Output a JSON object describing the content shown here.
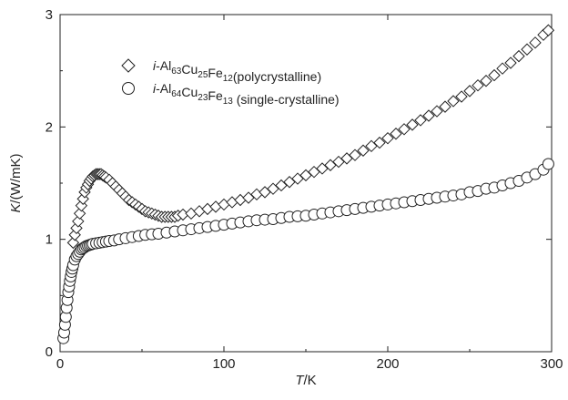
{
  "chart_data": {
    "type": "scatter",
    "xlabel": {
      "italic": "T",
      "rest": "/K"
    },
    "ylabel": {
      "italic": "K",
      "rest": "/(W/mK)"
    },
    "xlim": [
      0,
      300
    ],
    "ylim": [
      0,
      3
    ],
    "xticks": [
      "0",
      "100",
      "200",
      "300"
    ],
    "yticks": [
      "0",
      "1",
      "2",
      "3"
    ],
    "legend_position": "top-left",
    "grid": false,
    "series": [
      {
        "marker": "diamond",
        "legend": {
          "prefix": "i",
          "parts": [
            {
              "t": "-Al"
            },
            {
              "sub": "63"
            },
            {
              "t": "Cu"
            },
            {
              "sub": "25"
            },
            {
              "t": "Fe"
            },
            {
              "sub": "12"
            },
            {
              "t": "(polycrystalline)"
            }
          ]
        },
        "points": [
          [
            8,
            0.97
          ],
          [
            9,
            1.04
          ],
          [
            10,
            1.1
          ],
          [
            11,
            1.16
          ],
          [
            12,
            1.23
          ],
          [
            13,
            1.3
          ],
          [
            14,
            1.36
          ],
          [
            15,
            1.42
          ],
          [
            16,
            1.46
          ],
          [
            17,
            1.49
          ],
          [
            18,
            1.52
          ],
          [
            19,
            1.54
          ],
          [
            20,
            1.56
          ],
          [
            21,
            1.57
          ],
          [
            22,
            1.58
          ],
          [
            23,
            1.58
          ],
          [
            24,
            1.58
          ],
          [
            25,
            1.58
          ],
          [
            26,
            1.57
          ],
          [
            27,
            1.56
          ],
          [
            28,
            1.55
          ],
          [
            30,
            1.53
          ],
          [
            32,
            1.5
          ],
          [
            34,
            1.47
          ],
          [
            36,
            1.44
          ],
          [
            38,
            1.41
          ],
          [
            40,
            1.38
          ],
          [
            42,
            1.35
          ],
          [
            44,
            1.33
          ],
          [
            46,
            1.31
          ],
          [
            48,
            1.29
          ],
          [
            50,
            1.27
          ],
          [
            52,
            1.25
          ],
          [
            54,
            1.24
          ],
          [
            56,
            1.23
          ],
          [
            58,
            1.22
          ],
          [
            60,
            1.21
          ],
          [
            62,
            1.2
          ],
          [
            64,
            1.2
          ],
          [
            66,
            1.2
          ],
          [
            68,
            1.2
          ],
          [
            70,
            1.2
          ],
          [
            72,
            1.21
          ],
          [
            75,
            1.22
          ],
          [
            80,
            1.23
          ],
          [
            85,
            1.25
          ],
          [
            90,
            1.27
          ],
          [
            95,
            1.29
          ],
          [
            100,
            1.31
          ],
          [
            105,
            1.33
          ],
          [
            110,
            1.35
          ],
          [
            115,
            1.37
          ],
          [
            120,
            1.4
          ],
          [
            125,
            1.42
          ],
          [
            130,
            1.45
          ],
          [
            135,
            1.48
          ],
          [
            140,
            1.51
          ],
          [
            145,
            1.54
          ],
          [
            150,
            1.57
          ],
          [
            155,
            1.6
          ],
          [
            160,
            1.63
          ],
          [
            165,
            1.66
          ],
          [
            170,
            1.69
          ],
          [
            175,
            1.72
          ],
          [
            180,
            1.75
          ],
          [
            185,
            1.79
          ],
          [
            190,
            1.83
          ],
          [
            195,
            1.86
          ],
          [
            200,
            1.9
          ],
          [
            205,
            1.94
          ],
          [
            210,
            1.98
          ],
          [
            215,
            2.02
          ],
          [
            220,
            2.06
          ],
          [
            225,
            2.1
          ],
          [
            230,
            2.14
          ],
          [
            235,
            2.18
          ],
          [
            240,
            2.23
          ],
          [
            245,
            2.27
          ],
          [
            250,
            2.32
          ],
          [
            255,
            2.37
          ],
          [
            260,
            2.41
          ],
          [
            265,
            2.46
          ],
          [
            270,
            2.52
          ],
          [
            275,
            2.57
          ],
          [
            280,
            2.63
          ],
          [
            285,
            2.69
          ],
          [
            290,
            2.75
          ],
          [
            295,
            2.82
          ],
          [
            298,
            2.86
          ]
        ]
      },
      {
        "marker": "circle",
        "legend": {
          "prefix": "i",
          "parts": [
            {
              "t": "-Al"
            },
            {
              "sub": "64"
            },
            {
              "t": "Cu"
            },
            {
              "sub": "23"
            },
            {
              "t": "Fe"
            },
            {
              "sub": "13"
            },
            {
              "t": " (single-crystalline)"
            }
          ]
        },
        "points": [
          [
            2,
            0.12
          ],
          [
            2.5,
            0.17
          ],
          [
            3,
            0.24
          ],
          [
            3.5,
            0.31
          ],
          [
            4,
            0.39
          ],
          [
            4.5,
            0.46
          ],
          [
            5,
            0.53
          ],
          [
            5.5,
            0.58
          ],
          [
            6,
            0.63
          ],
          [
            6.5,
            0.67
          ],
          [
            7,
            0.71
          ],
          [
            7.5,
            0.74
          ],
          [
            8,
            0.77
          ],
          [
            9,
            0.82
          ],
          [
            10,
            0.85
          ],
          [
            11,
            0.87
          ],
          [
            12,
            0.89
          ],
          [
            13,
            0.91
          ],
          [
            14,
            0.92
          ],
          [
            15,
            0.93
          ],
          [
            16,
            0.94
          ],
          [
            17,
            0.945
          ],
          [
            18,
            0.95
          ],
          [
            19,
            0.955
          ],
          [
            20,
            0.96
          ],
          [
            22,
            0.965
          ],
          [
            24,
            0.97
          ],
          [
            26,
            0.975
          ],
          [
            28,
            0.98
          ],
          [
            30,
            0.985
          ],
          [
            33,
            0.99
          ],
          [
            36,
            1.0
          ],
          [
            40,
            1.01
          ],
          [
            44,
            1.02
          ],
          [
            48,
            1.03
          ],
          [
            52,
            1.04
          ],
          [
            56,
            1.045
          ],
          [
            60,
            1.05
          ],
          [
            65,
            1.06
          ],
          [
            70,
            1.07
          ],
          [
            75,
            1.08
          ],
          [
            80,
            1.09
          ],
          [
            85,
            1.1
          ],
          [
            90,
            1.11
          ],
          [
            95,
            1.12
          ],
          [
            100,
            1.13
          ],
          [
            105,
            1.14
          ],
          [
            110,
            1.15
          ],
          [
            115,
            1.16
          ],
          [
            120,
            1.17
          ],
          [
            125,
            1.175
          ],
          [
            130,
            1.18
          ],
          [
            135,
            1.19
          ],
          [
            140,
            1.2
          ],
          [
            145,
            1.205
          ],
          [
            150,
            1.21
          ],
          [
            155,
            1.22
          ],
          [
            160,
            1.23
          ],
          [
            165,
            1.24
          ],
          [
            170,
            1.25
          ],
          [
            175,
            1.26
          ],
          [
            180,
            1.27
          ],
          [
            185,
            1.28
          ],
          [
            190,
            1.29
          ],
          [
            195,
            1.3
          ],
          [
            200,
            1.31
          ],
          [
            205,
            1.32
          ],
          [
            210,
            1.33
          ],
          [
            215,
            1.34
          ],
          [
            220,
            1.35
          ],
          [
            225,
            1.36
          ],
          [
            230,
            1.37
          ],
          [
            235,
            1.38
          ],
          [
            240,
            1.39
          ],
          [
            245,
            1.4
          ],
          [
            250,
            1.42
          ],
          [
            255,
            1.43
          ],
          [
            260,
            1.45
          ],
          [
            265,
            1.46
          ],
          [
            270,
            1.48
          ],
          [
            275,
            1.5
          ],
          [
            280,
            1.52
          ],
          [
            285,
            1.55
          ],
          [
            290,
            1.58
          ],
          [
            295,
            1.62
          ],
          [
            298,
            1.67
          ]
        ]
      }
    ]
  }
}
